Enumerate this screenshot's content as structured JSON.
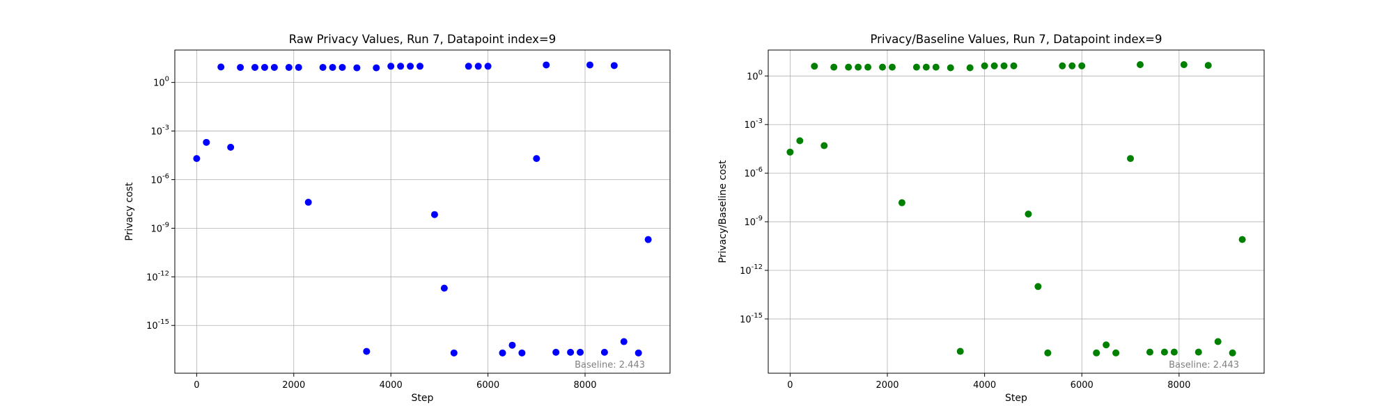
{
  "chart_data": [
    {
      "type": "scatter",
      "title": "Raw Privacy Values, Run 7, Datapoint index=9",
      "xlabel": "Step",
      "ylabel": "Privacy cost",
      "yscale": "log",
      "xlim": [
        -450,
        9750
      ],
      "ylim_exp": [
        -17.95,
        2.0
      ],
      "x_ticks": [
        0,
        2000,
        4000,
        6000,
        8000
      ],
      "y_tick_exps": [
        0,
        -3,
        -6,
        -9,
        -12,
        -15
      ],
      "grid": true,
      "color": "#0000ff",
      "annotation": "Baseline: 2.443",
      "points": [
        {
          "x": 0,
          "y": 2e-05
        },
        {
          "x": 200,
          "y": 0.0002
        },
        {
          "x": 500,
          "y": 9
        },
        {
          "x": 700,
          "y": 0.0001
        },
        {
          "x": 900,
          "y": 8.5
        },
        {
          "x": 1200,
          "y": 8.5
        },
        {
          "x": 1400,
          "y": 8.5
        },
        {
          "x": 1600,
          "y": 8.5
        },
        {
          "x": 1900,
          "y": 8.5
        },
        {
          "x": 2100,
          "y": 8.5
        },
        {
          "x": 2300,
          "y": 4e-08
        },
        {
          "x": 2600,
          "y": 8.5
        },
        {
          "x": 2800,
          "y": 8.5
        },
        {
          "x": 3000,
          "y": 8.5
        },
        {
          "x": 3300,
          "y": 8
        },
        {
          "x": 3500,
          "y": 2.5e-17
        },
        {
          "x": 3700,
          "y": 8
        },
        {
          "x": 4000,
          "y": 10
        },
        {
          "x": 4200,
          "y": 10
        },
        {
          "x": 4400,
          "y": 10
        },
        {
          "x": 4600,
          "y": 10
        },
        {
          "x": 4900,
          "y": 7e-09
        },
        {
          "x": 5100,
          "y": 2e-13
        },
        {
          "x": 5300,
          "y": 2e-17
        },
        {
          "x": 5600,
          "y": 10
        },
        {
          "x": 5800,
          "y": 10
        },
        {
          "x": 6000,
          "y": 10
        },
        {
          "x": 6300,
          "y": 2e-17
        },
        {
          "x": 6500,
          "y": 6e-17
        },
        {
          "x": 6700,
          "y": 2e-17
        },
        {
          "x": 7000,
          "y": 2e-05
        },
        {
          "x": 7200,
          "y": 12
        },
        {
          "x": 7400,
          "y": 2.2e-17
        },
        {
          "x": 7700,
          "y": 2.2e-17
        },
        {
          "x": 7900,
          "y": 2.2e-17
        },
        {
          "x": 8100,
          "y": 12
        },
        {
          "x": 8400,
          "y": 2.2e-17
        },
        {
          "x": 8600,
          "y": 11
        },
        {
          "x": 8800,
          "y": 1e-16
        },
        {
          "x": 9100,
          "y": 2e-17
        },
        {
          "x": 9300,
          "y": 2e-10
        }
      ]
    },
    {
      "type": "scatter",
      "title": "Privacy/Baseline Values, Run 7, Datapoint index=9",
      "xlabel": "Step",
      "ylabel": "Privacy/Baseline cost",
      "yscale": "log",
      "xlim": [
        -450,
        9750
      ],
      "ylim_exp": [
        -18.35,
        1.6
      ],
      "x_ticks": [
        0,
        2000,
        4000,
        6000,
        8000
      ],
      "y_tick_exps": [
        0,
        -3,
        -6,
        -9,
        -12,
        -15
      ],
      "grid": true,
      "color": "#008000",
      "annotation": "Baseline: 2.443",
      "points": [
        {
          "x": 0,
          "y": 2e-05
        },
        {
          "x": 200,
          "y": 0.0001
        },
        {
          "x": 500,
          "y": 4
        },
        {
          "x": 700,
          "y": 5e-05
        },
        {
          "x": 900,
          "y": 3.5
        },
        {
          "x": 1200,
          "y": 3.5
        },
        {
          "x": 1400,
          "y": 3.5
        },
        {
          "x": 1600,
          "y": 3.5
        },
        {
          "x": 1900,
          "y": 3.5
        },
        {
          "x": 2100,
          "y": 3.5
        },
        {
          "x": 2300,
          "y": 1.5e-08
        },
        {
          "x": 2600,
          "y": 3.5
        },
        {
          "x": 2800,
          "y": 3.5
        },
        {
          "x": 3000,
          "y": 3.5
        },
        {
          "x": 3300,
          "y": 3.2
        },
        {
          "x": 3500,
          "y": 1e-17
        },
        {
          "x": 3700,
          "y": 3.2
        },
        {
          "x": 4000,
          "y": 4.2
        },
        {
          "x": 4200,
          "y": 4.2
        },
        {
          "x": 4400,
          "y": 4.2
        },
        {
          "x": 4600,
          "y": 4.2
        },
        {
          "x": 4900,
          "y": 3e-09
        },
        {
          "x": 5100,
          "y": 1e-13
        },
        {
          "x": 5300,
          "y": 8e-18
        },
        {
          "x": 5600,
          "y": 4.2
        },
        {
          "x": 5800,
          "y": 4.2
        },
        {
          "x": 6000,
          "y": 4.2
        },
        {
          "x": 6300,
          "y": 8e-18
        },
        {
          "x": 6500,
          "y": 2.5e-17
        },
        {
          "x": 6700,
          "y": 8e-18
        },
        {
          "x": 7000,
          "y": 8e-06
        },
        {
          "x": 7200,
          "y": 5
        },
        {
          "x": 7400,
          "y": 9e-18
        },
        {
          "x": 7700,
          "y": 9e-18
        },
        {
          "x": 7900,
          "y": 9e-18
        },
        {
          "x": 8100,
          "y": 5
        },
        {
          "x": 8400,
          "y": 9e-18
        },
        {
          "x": 8600,
          "y": 4.5
        },
        {
          "x": 8800,
          "y": 4e-17
        },
        {
          "x": 9100,
          "y": 8e-18
        },
        {
          "x": 9300,
          "y": 8e-11
        }
      ]
    }
  ]
}
